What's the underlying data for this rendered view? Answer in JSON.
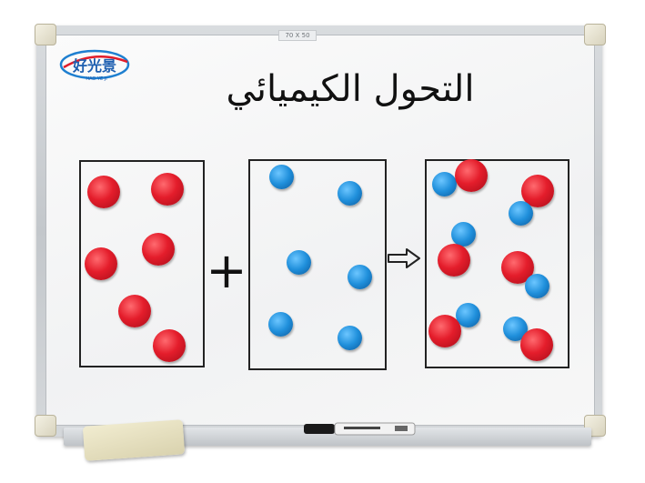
{
  "board": {
    "size_label": "70 X 50",
    "title": "التحول الكيميائي",
    "logo_text": "好光景",
    "logo_subtext": "HAO YE JI"
  },
  "colors": {
    "red_magnet": "#e41d2b",
    "blue_magnet": "#1f8fdb",
    "ink": "#111111",
    "frame": "#c3c7cb"
  },
  "panels": [
    {
      "name": "panel-reactant-red",
      "magnets": {
        "red": 6,
        "blue": 0
      }
    },
    {
      "name": "panel-reactant-blue",
      "magnets": {
        "red": 0,
        "blue": 6
      }
    },
    {
      "name": "panel-product-mixed",
      "magnets": {
        "red": 6,
        "blue": 6
      }
    }
  ],
  "symbols": {
    "plus": "+",
    "arrow": "arrow-right-outline-icon"
  },
  "objects": [
    "whiteboard",
    "eraser",
    "marker-pen"
  ]
}
